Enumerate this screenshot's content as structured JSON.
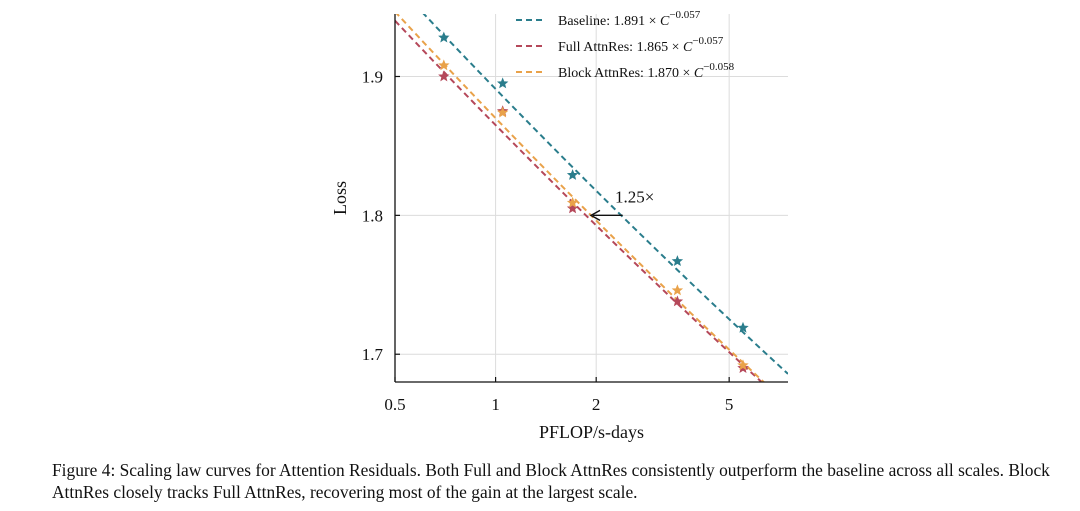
{
  "chart_data": {
    "type": "scatter",
    "xlabel": "PFLOP/s-days",
    "ylabel": "Loss",
    "xscale": "log",
    "xlim": [
      0.5,
      7.5
    ],
    "ylim": [
      1.68,
      1.945
    ],
    "xticks": [
      0.5,
      1,
      2,
      5
    ],
    "xtick_labels": [
      "0.5",
      "1",
      "2",
      "5"
    ],
    "yticks": [
      1.7,
      1.8,
      1.9
    ],
    "ytick_labels": [
      "1.7",
      "1.8",
      "1.9"
    ],
    "grid": true,
    "legend_position": "top-right",
    "series": [
      {
        "name": "Baseline",
        "fit": "1.891 × C^−0.057",
        "fit_coefficient": 1.891,
        "fit_exponent": -0.057,
        "color": "#2a7d8c",
        "x": [
          0.7,
          1.05,
          1.7,
          3.5,
          5.5
        ],
        "y": [
          1.928,
          1.895,
          1.829,
          1.767,
          1.719
        ]
      },
      {
        "name": "Full AttnRes",
        "fit": "1.865 × C^−0.057",
        "fit_coefficient": 1.865,
        "fit_exponent": -0.057,
        "color": "#b5485a",
        "x": [
          0.7,
          1.05,
          1.7,
          3.5,
          5.5
        ],
        "y": [
          1.9,
          1.875,
          1.805,
          1.738,
          1.69
        ]
      },
      {
        "name": "Block AttnRes",
        "fit": "1.870 × C^−0.058",
        "fit_coefficient": 1.87,
        "fit_exponent": -0.058,
        "color": "#e9a24a",
        "x": [
          0.7,
          1.05,
          1.7,
          3.5,
          5.5
        ],
        "y": [
          1.908,
          1.874,
          1.809,
          1.746,
          1.692
        ]
      }
    ],
    "annotations": [
      {
        "text": "1.25×",
        "arrow_from_x": 2.4,
        "arrow_to_x": 1.93,
        "y": 1.8
      }
    ]
  },
  "caption": {
    "text": "Figure 4: Scaling law curves for Attention Residuals. Both Full and Block AttnRes consistently outperform the baseline across all scales. Block AttnRes closely tracks Full AttnRes, recovering most of the gain at the largest scale."
  }
}
